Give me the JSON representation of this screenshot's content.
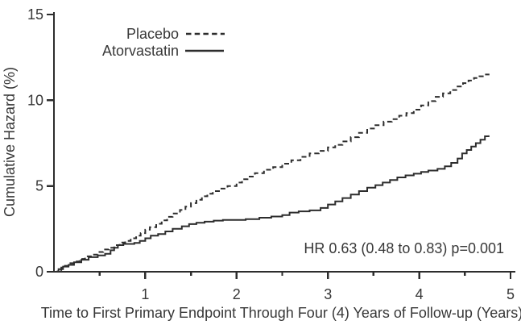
{
  "page": {
    "background": "#ffffff"
  },
  "chart_data": {
    "type": "line",
    "subtype": "kaplan-meier-step",
    "title": "",
    "xlabel": "Time to First Primary Endpoint Through Four (4) Years of Follow-up (Years)",
    "ylabel": "Cumulative Hazard (%)",
    "xlim": [
      0,
      5
    ],
    "ylim": [
      0,
      15
    ],
    "grid": false,
    "legend_position": "top-left-inside",
    "annotation": "HR 0.63 (0.48 to 0.83) p=0.001",
    "line_color": "#2d2d2d",
    "x_major_ticks": {
      "values": [
        1,
        2,
        3,
        4,
        5
      ],
      "labels": [
        "1",
        "2",
        "3",
        "4",
        "5"
      ]
    },
    "x_minor_ticks": [
      0.5,
      1.5,
      2.5,
      3.5,
      4.5
    ],
    "y_ticks": {
      "values": [
        0,
        5,
        10,
        15
      ],
      "labels": [
        "0",
        "5",
        "10",
        "15"
      ]
    },
    "series": [
      {
        "name": "Placebo",
        "style": "dashed",
        "points": [
          [
            0,
            0
          ],
          [
            0.04,
            0.1
          ],
          [
            0.08,
            0.25
          ],
          [
            0.12,
            0.35
          ],
          [
            0.16,
            0.5
          ],
          [
            0.22,
            0.6
          ],
          [
            0.28,
            0.75
          ],
          [
            0.34,
            0.9
          ],
          [
            0.42,
            1.0
          ],
          [
            0.48,
            1.15
          ],
          [
            0.54,
            1.3
          ],
          [
            0.6,
            1.4
          ],
          [
            0.66,
            1.55
          ],
          [
            0.72,
            1.7
          ],
          [
            0.78,
            1.8
          ],
          [
            0.84,
            1.95
          ],
          [
            0.9,
            2.1
          ],
          [
            0.95,
            2.25
          ],
          [
            1.0,
            2.45
          ],
          [
            1.05,
            2.6
          ],
          [
            1.12,
            2.8
          ],
          [
            1.18,
            3.0
          ],
          [
            1.24,
            3.2
          ],
          [
            1.3,
            3.4
          ],
          [
            1.38,
            3.6
          ],
          [
            1.44,
            3.8
          ],
          [
            1.5,
            4.0
          ],
          [
            1.56,
            4.2
          ],
          [
            1.62,
            4.4
          ],
          [
            1.68,
            4.55
          ],
          [
            1.74,
            4.7
          ],
          [
            1.82,
            4.85
          ],
          [
            1.9,
            5.0
          ],
          [
            2.0,
            5.2
          ],
          [
            2.06,
            5.4
          ],
          [
            2.12,
            5.55
          ],
          [
            2.2,
            5.75
          ],
          [
            2.3,
            5.95
          ],
          [
            2.4,
            6.1
          ],
          [
            2.5,
            6.3
          ],
          [
            2.6,
            6.5
          ],
          [
            2.7,
            6.7
          ],
          [
            2.8,
            6.9
          ],
          [
            2.9,
            7.05
          ],
          [
            3.0,
            7.25
          ],
          [
            3.08,
            7.4
          ],
          [
            3.16,
            7.6
          ],
          [
            3.25,
            7.85
          ],
          [
            3.34,
            8.1
          ],
          [
            3.43,
            8.35
          ],
          [
            3.52,
            8.55
          ],
          [
            3.61,
            8.75
          ],
          [
            3.7,
            8.9
          ],
          [
            3.78,
            9.1
          ],
          [
            3.86,
            9.25
          ],
          [
            3.94,
            9.45
          ],
          [
            4.02,
            9.7
          ],
          [
            4.1,
            9.95
          ],
          [
            4.18,
            10.2
          ],
          [
            4.26,
            10.4
          ],
          [
            4.34,
            10.6
          ],
          [
            4.42,
            10.8
          ],
          [
            4.48,
            11.0
          ],
          [
            4.54,
            11.15
          ],
          [
            4.6,
            11.3
          ],
          [
            4.66,
            11.4
          ],
          [
            4.72,
            11.5
          ],
          [
            4.76,
            11.55
          ]
        ]
      },
      {
        "name": "Atorvastatin",
        "style": "solid",
        "points": [
          [
            0,
            0
          ],
          [
            0.05,
            0.15
          ],
          [
            0.1,
            0.3
          ],
          [
            0.16,
            0.4
          ],
          [
            0.22,
            0.55
          ],
          [
            0.3,
            0.7
          ],
          [
            0.38,
            0.85
          ],
          [
            0.48,
            0.95
          ],
          [
            0.56,
            1.05
          ],
          [
            0.62,
            1.25
          ],
          [
            0.66,
            1.4
          ],
          [
            0.7,
            1.55
          ],
          [
            0.76,
            1.62
          ],
          [
            0.88,
            1.68
          ],
          [
            0.94,
            1.8
          ],
          [
            1.0,
            1.95
          ],
          [
            1.06,
            2.1
          ],
          [
            1.14,
            2.2
          ],
          [
            1.22,
            2.35
          ],
          [
            1.3,
            2.5
          ],
          [
            1.4,
            2.65
          ],
          [
            1.48,
            2.78
          ],
          [
            1.56,
            2.86
          ],
          [
            1.65,
            2.92
          ],
          [
            1.75,
            2.98
          ],
          [
            1.85,
            3.02
          ],
          [
            2.1,
            3.07
          ],
          [
            2.25,
            3.15
          ],
          [
            2.38,
            3.22
          ],
          [
            2.5,
            3.3
          ],
          [
            2.58,
            3.45
          ],
          [
            2.68,
            3.52
          ],
          [
            2.8,
            3.58
          ],
          [
            2.92,
            3.72
          ],
          [
            3.0,
            3.92
          ],
          [
            3.08,
            4.1
          ],
          [
            3.16,
            4.3
          ],
          [
            3.25,
            4.5
          ],
          [
            3.34,
            4.7
          ],
          [
            3.43,
            4.9
          ],
          [
            3.52,
            5.05
          ],
          [
            3.6,
            5.2
          ],
          [
            3.68,
            5.35
          ],
          [
            3.76,
            5.5
          ],
          [
            3.85,
            5.62
          ],
          [
            3.94,
            5.72
          ],
          [
            4.02,
            5.82
          ],
          [
            4.1,
            5.9
          ],
          [
            4.2,
            6.0
          ],
          [
            4.28,
            6.15
          ],
          [
            4.35,
            6.35
          ],
          [
            4.42,
            6.6
          ],
          [
            4.47,
            6.9
          ],
          [
            4.52,
            7.1
          ],
          [
            4.57,
            7.3
          ],
          [
            4.62,
            7.5
          ],
          [
            4.67,
            7.7
          ],
          [
            4.72,
            7.9
          ],
          [
            4.76,
            7.95
          ]
        ]
      }
    ]
  }
}
